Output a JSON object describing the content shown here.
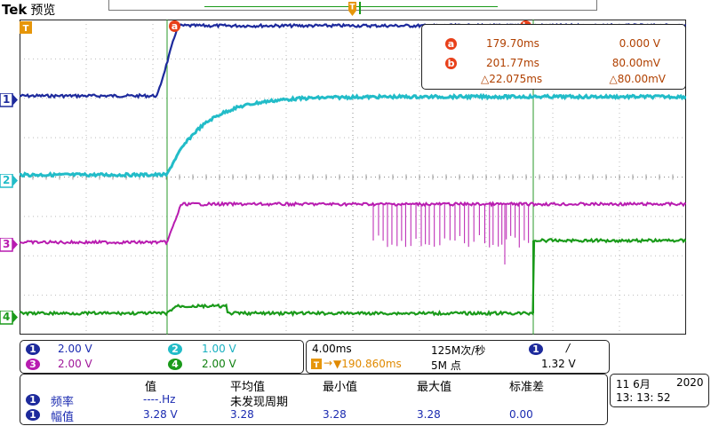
{
  "app": {
    "brand": "Tek",
    "mode": "预览"
  },
  "channels": [
    {
      "id": "1",
      "color": "#1d2a9c"
    },
    {
      "id": "2",
      "color": "#22bcc8"
    },
    {
      "id": "3",
      "color": "#b81cb0"
    },
    {
      "id": "4",
      "color": "#1a9a1a"
    }
  ],
  "trigger_marker": "T",
  "cursors": {
    "a": {
      "label": "a",
      "time": "179.70ms",
      "value": "0.000 V"
    },
    "b": {
      "label": "b",
      "time": "201.77ms",
      "value": "80.00mV"
    },
    "delta_time": "△22.075ms",
    "delta_value": "△80.00mV"
  },
  "scales": [
    {
      "ch": "1",
      "value": "2.00 V"
    },
    {
      "ch": "2",
      "value": "1.00 V"
    },
    {
      "ch": "3",
      "value": "2.00 V"
    },
    {
      "ch": "4",
      "value": "2.00 V"
    }
  ],
  "horizontal": {
    "timebase": "4.00ms",
    "sample_rate": "125M次/秒",
    "trigger_pos": "▼190.860ms",
    "record_length": "5M 点",
    "trigger_source": "1",
    "trigger_slope": "/",
    "trigger_level": "1.32 V"
  },
  "measurements": {
    "headers": [
      "值",
      "平均值",
      "最小值",
      "最大值",
      "标准差"
    ],
    "rows": [
      {
        "ch": "1",
        "name": "频率",
        "value": "----.Hz",
        "mean": "未发现周期",
        "min": "",
        "max": "",
        "std": ""
      },
      {
        "ch": "1",
        "name": "幅值",
        "value": "3.28 V",
        "mean": "3.28",
        "min": "3.28",
        "max": "3.28",
        "std": "0.00"
      }
    ]
  },
  "datetime": {
    "date": "11 6月",
    "year": "2020",
    "time": "13: 13: 52"
  }
}
